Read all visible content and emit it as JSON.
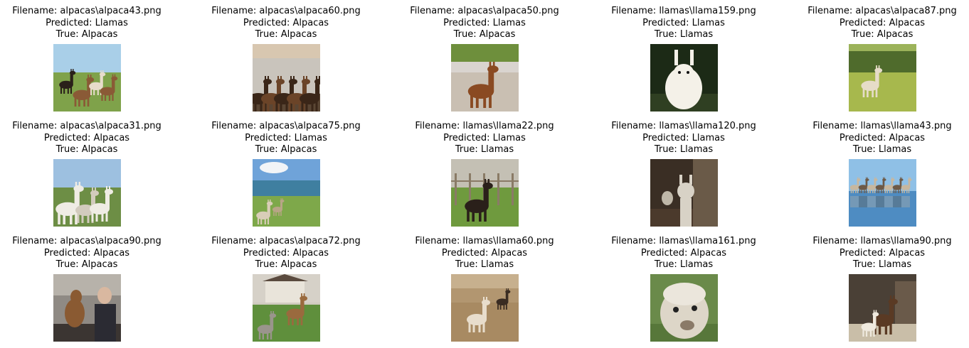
{
  "labels": {
    "filename_prefix": "Filename: ",
    "predicted_prefix": "Predicted: ",
    "true_prefix": "True: "
  },
  "items": [
    {
      "filename": "alpacas\\alpaca43.png",
      "predicted": "Llamas",
      "true": "Alpacas",
      "scene": "pasture-herd",
      "colors": {
        "sky": "#a9cfe8",
        "ground": "#7fa24a",
        "animal": "#8a5a36",
        "accent": "#e8dccb"
      }
    },
    {
      "filename": "alpacas\\alpaca60.png",
      "predicted": "Alpacas",
      "true": "Alpacas",
      "scene": "barn-crowd",
      "colors": {
        "sky": "#c9c4bc",
        "ground": "#5a4634",
        "animal": "#6b4428",
        "accent": "#d8c7b0"
      }
    },
    {
      "filename": "alpacas\\alpaca50.png",
      "predicted": "Llamas",
      "true": "Alpacas",
      "scene": "single-standing",
      "colors": {
        "sky": "#d9d4cf",
        "ground": "#c9bfb2",
        "animal": "#8a4a22",
        "accent": "#6e8f3c"
      }
    },
    {
      "filename": "llamas\\llama159.png",
      "predicted": "Llamas",
      "true": "Llamas",
      "scene": "portrait-dark",
      "colors": {
        "sky": "#1c2a16",
        "ground": "#2f3f22",
        "animal": "#f4f1e8",
        "accent": "#d9d2c0"
      }
    },
    {
      "filename": "alpacas\\alpaca87.png",
      "predicted": "Alpacas",
      "true": "Alpacas",
      "scene": "field-single",
      "colors": {
        "sky": "#9cb35a",
        "ground": "#a7b84d",
        "animal": "#e6dcc8",
        "accent": "#4f6b2c"
      }
    },
    {
      "filename": "alpacas\\alpaca31.png",
      "predicted": "Alpacas",
      "true": "Alpacas",
      "scene": "white-trio",
      "colors": {
        "sky": "#9dc0e0",
        "ground": "#6d8e45",
        "animal": "#efece4",
        "accent": "#d2cbbd"
      }
    },
    {
      "filename": "alpacas\\alpaca75.png",
      "predicted": "Llamas",
      "true": "Alpacas",
      "scene": "lake-landscape",
      "colors": {
        "sky": "#6fa3d9",
        "ground": "#7ea84a",
        "animal": "#d9cdb8",
        "accent": "#3f7fa0"
      }
    },
    {
      "filename": "llamas\\llama22.png",
      "predicted": "Llamas",
      "true": "Llamas",
      "scene": "fence-dark",
      "colors": {
        "sky": "#c4c0b4",
        "ground": "#6f9a3e",
        "animal": "#2a201a",
        "accent": "#8a7b66"
      }
    },
    {
      "filename": "llamas\\llama120.png",
      "predicted": "Llamas",
      "true": "Llamas",
      "scene": "barn-door",
      "colors": {
        "sky": "#3a2e24",
        "ground": "#4b3a2c",
        "animal": "#d8d2c6",
        "accent": "#6a5a48"
      }
    },
    {
      "filename": "llamas\\llama43.png",
      "predicted": "Alpacas",
      "true": "Llamas",
      "scene": "water-reflection",
      "colors": {
        "sky": "#8fc0e6",
        "ground": "#4e8cc2",
        "animal": "#6d5a48",
        "accent": "#c7b79f"
      }
    },
    {
      "filename": "alpacas\\alpaca90.png",
      "predicted": "Alpacas",
      "true": "Alpacas",
      "scene": "indoor-people",
      "colors": {
        "sky": "#8f8a84",
        "ground": "#3b3532",
        "animal": "#8a5a32",
        "accent": "#2b2b33"
      }
    },
    {
      "filename": "alpacas\\alpaca72.png",
      "predicted": "Alpacas",
      "true": "Alpacas",
      "scene": "house-lawn",
      "colors": {
        "sky": "#d6d1c8",
        "ground": "#5f8f3c",
        "animal": "#9a6a3e",
        "accent": "#e9e4da"
      }
    },
    {
      "filename": "llamas\\llama60.png",
      "predicted": "Alpacas",
      "true": "Llamas",
      "scene": "dry-field",
      "colors": {
        "sky": "#b29670",
        "ground": "#a88a62",
        "animal": "#e8ddcc",
        "accent": "#3a2c22"
      }
    },
    {
      "filename": "llamas\\llama161.png",
      "predicted": "Alpacas",
      "true": "Llamas",
      "scene": "closeup-fluffy",
      "colors": {
        "sky": "#6a8a4a",
        "ground": "#57773a",
        "animal": "#ddd6c8",
        "accent": "#8a7a68"
      }
    },
    {
      "filename": "llamas\\llama90.png",
      "predicted": "Alpacas",
      "true": "Llamas",
      "scene": "mother-baby",
      "colors": {
        "sky": "#4a4036",
        "ground": "#c9bea8",
        "animal": "#5a3a24",
        "accent": "#efe9de"
      }
    }
  ]
}
